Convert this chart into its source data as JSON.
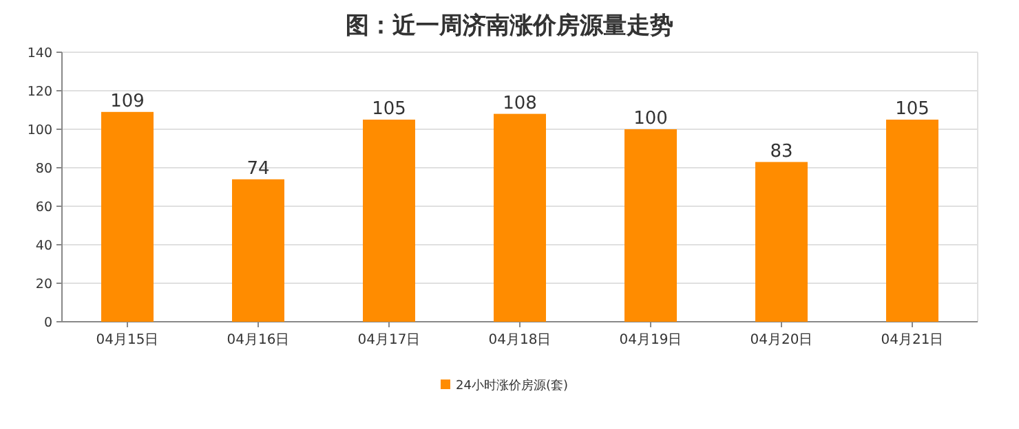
{
  "chart_data": {
    "type": "bar",
    "title": "图：近一周济南涨价房源量走势",
    "categories": [
      "04月15日",
      "04月16日",
      "04月17日",
      "04月18日",
      "04月19日",
      "04月20日",
      "04月21日"
    ],
    "series": [
      {
        "name": "24小时涨价房源(套)",
        "color": "#ff8c00",
        "values": [
          109,
          74,
          105,
          108,
          100,
          83,
          105
        ]
      }
    ],
    "ylim": [
      0,
      140
    ],
    "yticks": [
      0,
      20,
      40,
      60,
      80,
      100,
      120,
      140
    ],
    "grid": "y",
    "data_labels": true,
    "legend": "bottom"
  }
}
